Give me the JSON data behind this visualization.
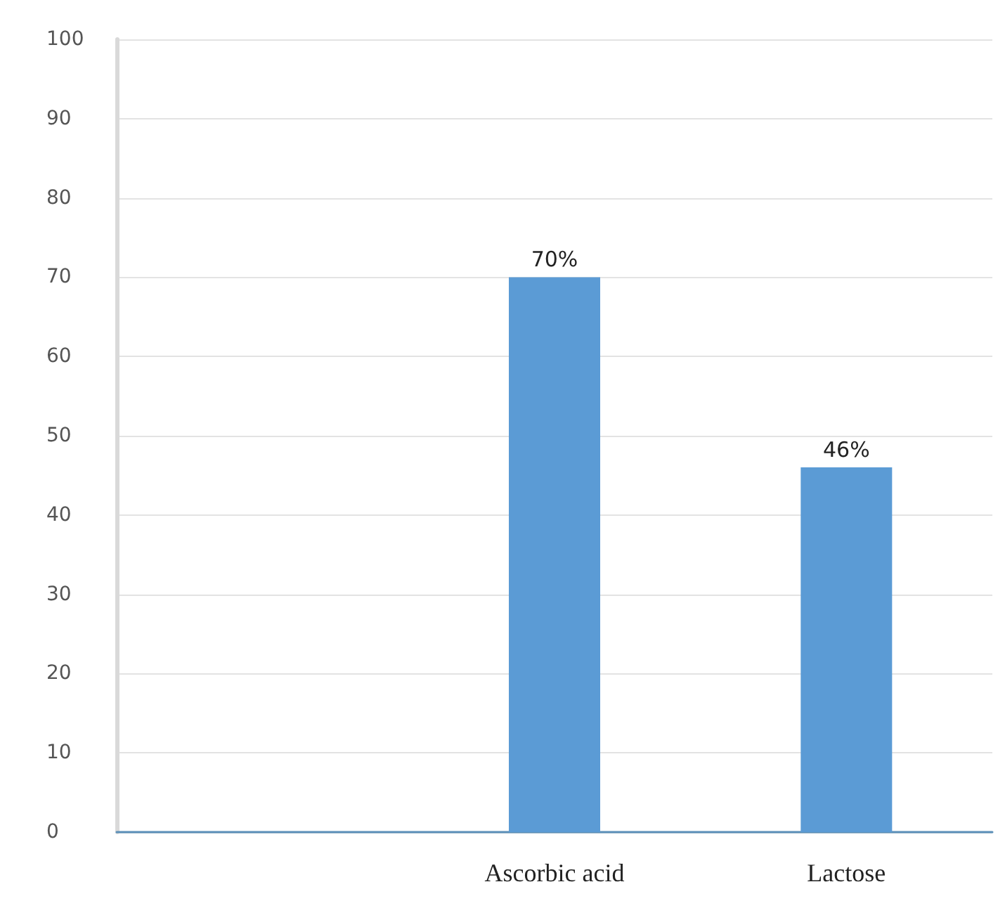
{
  "chart_data": {
    "type": "bar",
    "categories": [
      null,
      "Ascorbic acid",
      "Lactose"
    ],
    "values": [
      null,
      70,
      46
    ],
    "value_labels": [
      null,
      "70%",
      "46%"
    ],
    "color": "#5b9bd5",
    "ylim": [
      0,
      100
    ],
    "yticks": [
      0,
      10,
      20,
      30,
      40,
      50,
      60,
      70,
      80,
      90,
      100
    ],
    "grid": "y"
  }
}
